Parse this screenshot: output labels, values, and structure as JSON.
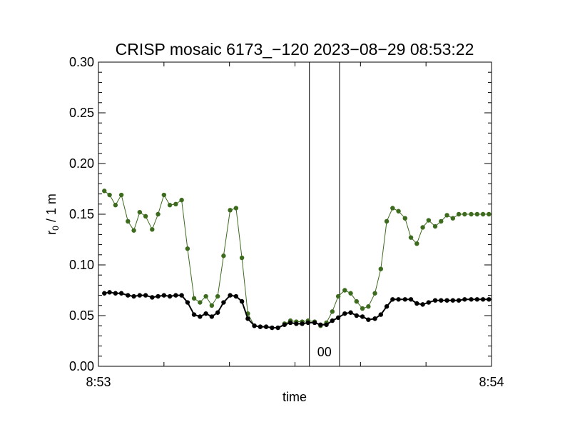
{
  "chart_data": {
    "type": "line",
    "title": "CRISP mosaic 6173_−120 2023−08−29 08:53:22",
    "xlabel": "time",
    "ylabel_main": "r",
    "ylabel_sub": "0",
    "ylabel_tail": " / 1 m",
    "xlim": [
      0,
      60
    ],
    "ylim": [
      0.0,
      0.3
    ],
    "x_ticks": [
      {
        "value": 0,
        "label": "8:53"
      },
      {
        "value": 60,
        "label": "8:54"
      }
    ],
    "x_minor_ticks": [
      10,
      20,
      30,
      40,
      50
    ],
    "y_ticks": [
      {
        "value": 0.0,
        "label": "0.00"
      },
      {
        "value": 0.05,
        "label": "0.05"
      },
      {
        "value": 0.1,
        "label": "0.10"
      },
      {
        "value": 0.15,
        "label": "0.15"
      },
      {
        "value": 0.2,
        "label": "0.20"
      },
      {
        "value": 0.25,
        "label": "0.25"
      },
      {
        "value": 0.3,
        "label": "0.30"
      }
    ],
    "grid": false,
    "markers": [
      {
        "label": "00",
        "x_start": 32.2,
        "x_end": 36.8
      }
    ],
    "series": [
      {
        "name": "green",
        "color": "#3d6b1e",
        "x": [
          0.9,
          1.7,
          2.6,
          3.5,
          4.5,
          5.4,
          6.3,
          7.2,
          8.2,
          9.1,
          10.0,
          10.9,
          11.8,
          12.7,
          13.6,
          14.6,
          15.5,
          16.4,
          17.3,
          18.2,
          19.1,
          20.1,
          21.0,
          21.9,
          22.8,
          23.8,
          24.7,
          25.6,
          26.5,
          27.4,
          28.4,
          29.3,
          30.2,
          31.1,
          32.0,
          33.0,
          33.9,
          34.8,
          35.7,
          36.6,
          37.6,
          38.5,
          39.4,
          40.3,
          41.2,
          42.2,
          43.1,
          44.0,
          44.9,
          45.8,
          46.8,
          47.7,
          48.6,
          49.5,
          50.4,
          51.4,
          52.3,
          53.2,
          54.1,
          55.0,
          55.9,
          56.9,
          57.8,
          58.7,
          59.6
        ],
        "values": [
          0.173,
          0.169,
          0.159,
          0.169,
          0.143,
          0.134,
          0.152,
          0.148,
          0.135,
          0.15,
          0.169,
          0.159,
          0.16,
          0.164,
          0.116,
          0.067,
          0.063,
          0.069,
          0.06,
          0.069,
          0.109,
          0.154,
          0.156,
          0.107,
          0.052,
          0.04,
          0.039,
          0.039,
          0.038,
          0.038,
          0.042,
          0.045,
          0.044,
          0.044,
          0.045,
          0.044,
          0.04,
          0.043,
          0.054,
          0.069,
          0.075,
          0.072,
          0.064,
          0.057,
          0.059,
          0.072,
          0.096,
          0.143,
          0.156,
          0.153,
          0.146,
          0.127,
          0.121,
          0.137,
          0.144,
          0.138,
          0.143,
          0.149,
          0.146,
          0.15,
          0.15,
          0.15,
          0.15,
          0.15,
          0.15
        ]
      },
      {
        "name": "black",
        "color": "#000000",
        "x": [
          0.9,
          1.7,
          2.6,
          3.5,
          4.5,
          5.4,
          6.3,
          7.2,
          8.2,
          9.1,
          10.0,
          10.9,
          11.8,
          12.7,
          13.6,
          14.6,
          15.5,
          16.4,
          17.3,
          18.2,
          19.1,
          20.1,
          21.0,
          21.9,
          22.8,
          23.8,
          24.7,
          25.6,
          26.5,
          27.4,
          28.4,
          29.3,
          30.2,
          31.1,
          32.0,
          33.0,
          33.9,
          34.8,
          35.7,
          36.6,
          37.6,
          38.5,
          39.4,
          40.3,
          41.2,
          42.2,
          43.1,
          44.0,
          44.9,
          45.8,
          46.8,
          47.7,
          48.6,
          49.5,
          50.4,
          51.4,
          52.3,
          53.2,
          54.1,
          55.0,
          55.9,
          56.9,
          57.8,
          58.7,
          59.6
        ],
        "values": [
          0.072,
          0.073,
          0.072,
          0.072,
          0.07,
          0.069,
          0.07,
          0.07,
          0.068,
          0.069,
          0.07,
          0.069,
          0.07,
          0.07,
          0.063,
          0.051,
          0.049,
          0.052,
          0.049,
          0.053,
          0.063,
          0.07,
          0.069,
          0.064,
          0.047,
          0.04,
          0.039,
          0.039,
          0.038,
          0.038,
          0.041,
          0.043,
          0.042,
          0.042,
          0.043,
          0.043,
          0.041,
          0.041,
          0.045,
          0.048,
          0.052,
          0.053,
          0.05,
          0.049,
          0.046,
          0.047,
          0.051,
          0.059,
          0.066,
          0.066,
          0.066,
          0.066,
          0.062,
          0.061,
          0.063,
          0.065,
          0.065,
          0.065,
          0.065,
          0.065,
          0.066,
          0.066,
          0.066,
          0.066,
          0.066
        ]
      }
    ]
  }
}
